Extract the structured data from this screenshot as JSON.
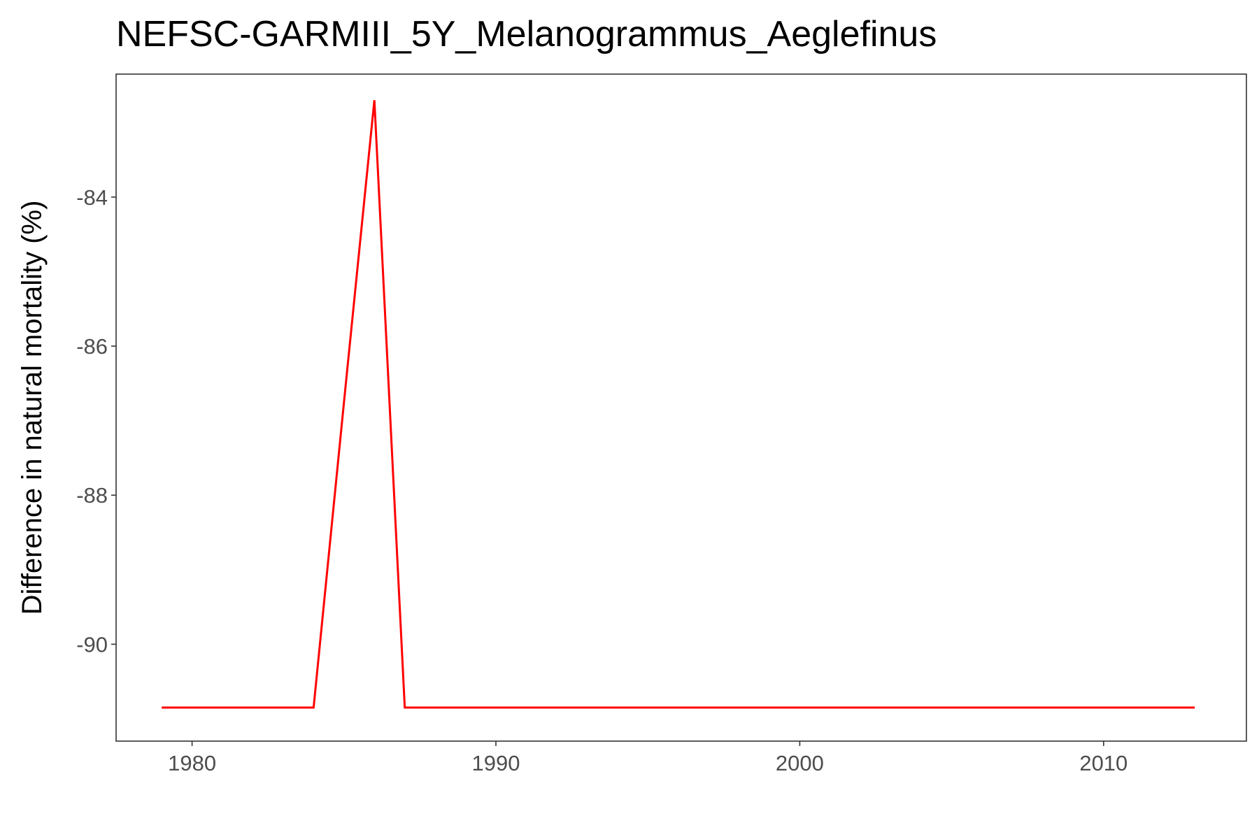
{
  "chart_data": {
    "type": "line",
    "title": "NEFSC-GARMIII_5Y_Melanogrammus_Aeglefinus",
    "xlabel": "",
    "ylabel": "Difference in natural mortality (%)",
    "xlim": [
      1977.5,
      2014.7
    ],
    "ylim": [
      -91.3,
      -82.35
    ],
    "x_ticks": [
      1980,
      1990,
      2000,
      2010
    ],
    "y_ticks": [
      -90,
      -88,
      -86,
      -84
    ],
    "grid": false,
    "legend": "none",
    "series": [
      {
        "color": "#ff0000",
        "x": [
          1979,
          1980,
          1981,
          1982,
          1983,
          1984,
          1985,
          1986,
          1987,
          1988,
          1989,
          1990,
          1991,
          1992,
          1993,
          1994,
          1995,
          1996,
          1997,
          1998,
          1999,
          2000,
          2001,
          2002,
          2003,
          2004,
          2005,
          2006,
          2007,
          2008,
          2009,
          2010,
          2011,
          2012,
          2013
        ],
        "values": [
          -90.85,
          -90.85,
          -90.85,
          -90.85,
          -90.85,
          -90.85,
          -86.75,
          -82.7,
          -90.85,
          -90.85,
          -90.85,
          -90.85,
          -90.85,
          -90.85,
          -90.85,
          -90.85,
          -90.85,
          -90.85,
          -90.85,
          -90.85,
          -90.85,
          -90.85,
          -90.85,
          -90.85,
          -90.85,
          -90.85,
          -90.85,
          -90.85,
          -90.85,
          -90.85,
          -90.85,
          -90.85,
          -90.85,
          -90.85,
          -90.85
        ]
      }
    ]
  }
}
